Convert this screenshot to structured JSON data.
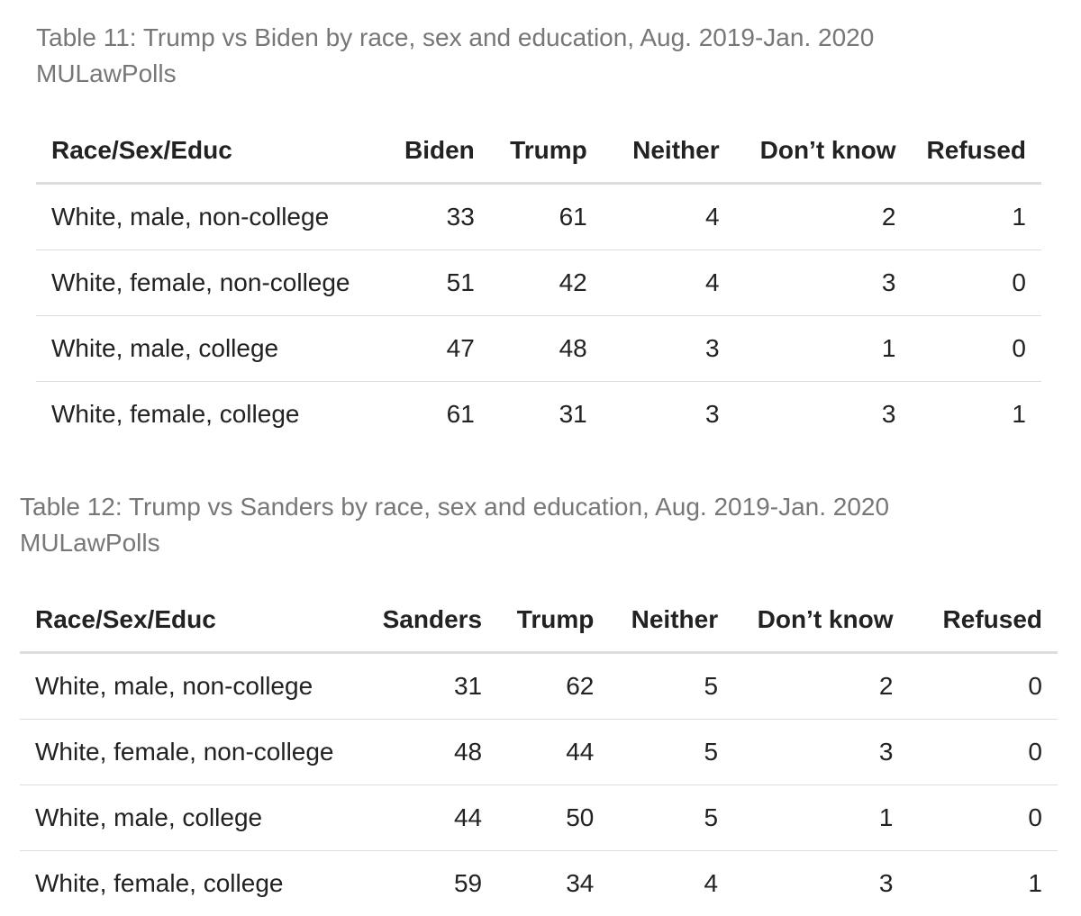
{
  "tables": [
    {
      "caption_line1": "Table 11: Trump vs Biden by race, sex and education, Aug. 2019-Jan. 2020",
      "caption_line2": "MULawPolls",
      "headers": [
        "Race/Sex/Educ",
        "Biden",
        "Trump",
        "Neither",
        "Don’t know",
        "Refused"
      ],
      "rows": [
        [
          "White, male, non-college",
          "33",
          "61",
          "4",
          "2",
          "1"
        ],
        [
          "White, female, non-college",
          "51",
          "42",
          "4",
          "3",
          "0"
        ],
        [
          "White, male, college",
          "47",
          "48",
          "3",
          "1",
          "0"
        ],
        [
          "White, female, college",
          "61",
          "31",
          "3",
          "3",
          "1"
        ]
      ]
    },
    {
      "caption_line1": "Table 12: Trump vs Sanders by race, sex and education, Aug. 2019-Jan. 2020",
      "caption_line2": "MULawPolls",
      "headers": [
        "Race/Sex/Educ",
        "Sanders",
        "Trump",
        "Neither",
        "Don’t know",
        "Refused"
      ],
      "rows": [
        [
          "White, male, non-college",
          "31",
          "62",
          "5",
          "2",
          "0"
        ],
        [
          "White, female, non-college",
          "48",
          "44",
          "5",
          "3",
          "0"
        ],
        [
          "White, male, college",
          "44",
          "50",
          "5",
          "1",
          "0"
        ],
        [
          "White, female, college",
          "59",
          "34",
          "4",
          "3",
          "1"
        ]
      ]
    }
  ]
}
